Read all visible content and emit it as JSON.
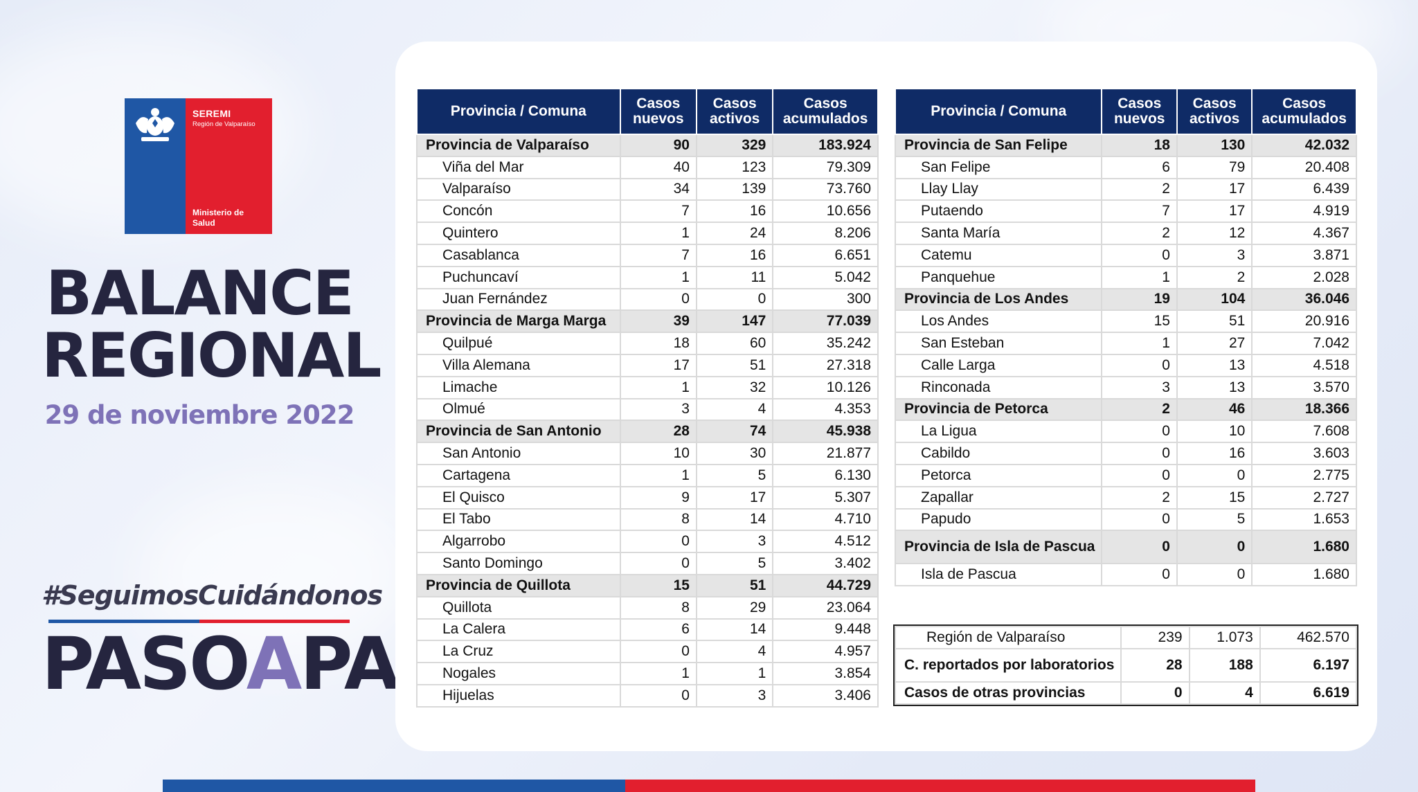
{
  "logo": {
    "line1": "SEREMI",
    "line2": "Región de Valparaíso",
    "line3a": "Ministerio de",
    "line3b": "Salud"
  },
  "title_line1": "BALANCE",
  "title_line2": "REGIONAL",
  "date": "29 de noviembre 2022",
  "hashtag": "#SeguimosCuidándonos",
  "paso": {
    "p1": "PASO",
    "p2": "A",
    "p3": "PASO"
  },
  "headers": {
    "col1": "Provincia / Comuna",
    "col2a": "Casos",
    "col2b": "nuevos",
    "col3a": "Casos",
    "col3b": "activos",
    "col4a": "Casos",
    "col4b": "acumulados"
  },
  "left_rows": [
    {
      "name": "Provincia de Valparaíso",
      "nuevos": "90",
      "activos": "329",
      "acum": "183.924",
      "prov": true
    },
    {
      "name": "Viña del Mar",
      "nuevos": "40",
      "activos": "123",
      "acum": "79.309"
    },
    {
      "name": "Valparaíso",
      "nuevos": "34",
      "activos": "139",
      "acum": "73.760"
    },
    {
      "name": "Concón",
      "nuevos": "7",
      "activos": "16",
      "acum": "10.656"
    },
    {
      "name": "Quintero",
      "nuevos": "1",
      "activos": "24",
      "acum": "8.206"
    },
    {
      "name": "Casablanca",
      "nuevos": "7",
      "activos": "16",
      "acum": "6.651"
    },
    {
      "name": "Puchuncaví",
      "nuevos": "1",
      "activos": "11",
      "acum": "5.042"
    },
    {
      "name": "Juan Fernández",
      "nuevos": "0",
      "activos": "0",
      "acum": "300"
    },
    {
      "name": "Provincia de Marga Marga",
      "nuevos": "39",
      "activos": "147",
      "acum": "77.039",
      "prov": true
    },
    {
      "name": "Quilpué",
      "nuevos": "18",
      "activos": "60",
      "acum": "35.242"
    },
    {
      "name": "Villa Alemana",
      "nuevos": "17",
      "activos": "51",
      "acum": "27.318"
    },
    {
      "name": "Limache",
      "nuevos": "1",
      "activos": "32",
      "acum": "10.126"
    },
    {
      "name": "Olmué",
      "nuevos": "3",
      "activos": "4",
      "acum": "4.353"
    },
    {
      "name": "Provincia de San Antonio",
      "nuevos": "28",
      "activos": "74",
      "acum": "45.938",
      "prov": true
    },
    {
      "name": "San Antonio",
      "nuevos": "10",
      "activos": "30",
      "acum": "21.877"
    },
    {
      "name": "Cartagena",
      "nuevos": "1",
      "activos": "5",
      "acum": "6.130"
    },
    {
      "name": "El Quisco",
      "nuevos": "9",
      "activos": "17",
      "acum": "5.307"
    },
    {
      "name": "El Tabo",
      "nuevos": "8",
      "activos": "14",
      "acum": "4.710"
    },
    {
      "name": "Algarrobo",
      "nuevos": "0",
      "activos": "3",
      "acum": "4.512"
    },
    {
      "name": "Santo Domingo",
      "nuevos": "0",
      "activos": "5",
      "acum": "3.402"
    },
    {
      "name": "Provincia de Quillota",
      "nuevos": "15",
      "activos": "51",
      "acum": "44.729",
      "prov": true
    },
    {
      "name": "Quillota",
      "nuevos": "8",
      "activos": "29",
      "acum": "23.064"
    },
    {
      "name": "La Calera",
      "nuevos": "6",
      "activos": "14",
      "acum": "9.448"
    },
    {
      "name": "La Cruz",
      "nuevos": "0",
      "activos": "4",
      "acum": "4.957"
    },
    {
      "name": "Nogales",
      "nuevos": "1",
      "activos": "1",
      "acum": "3.854"
    },
    {
      "name": "Hijuelas",
      "nuevos": "0",
      "activos": "3",
      "acum": "3.406"
    }
  ],
  "right_rows": [
    {
      "name": "Provincia de San Felipe",
      "nuevos": "18",
      "activos": "130",
      "acum": "42.032",
      "prov": true
    },
    {
      "name": "San Felipe",
      "nuevos": "6",
      "activos": "79",
      "acum": "20.408"
    },
    {
      "name": "Llay Llay",
      "nuevos": "2",
      "activos": "17",
      "acum": "6.439"
    },
    {
      "name": "Putaendo",
      "nuevos": "7",
      "activos": "17",
      "acum": "4.919"
    },
    {
      "name": "Santa María",
      "nuevos": "2",
      "activos": "12",
      "acum": "4.367"
    },
    {
      "name": "Catemu",
      "nuevos": "0",
      "activos": "3",
      "acum": "3.871"
    },
    {
      "name": "Panquehue",
      "nuevos": "1",
      "activos": "2",
      "acum": "2.028"
    },
    {
      "name": "Provincia de Los Andes",
      "nuevos": "19",
      "activos": "104",
      "acum": "36.046",
      "prov": true
    },
    {
      "name": "Los Andes",
      "nuevos": "15",
      "activos": "51",
      "acum": "20.916"
    },
    {
      "name": "San Esteban",
      "nuevos": "1",
      "activos": "27",
      "acum": "7.042"
    },
    {
      "name": "Calle Larga",
      "nuevos": "0",
      "activos": "13",
      "acum": "4.518"
    },
    {
      "name": "Rinconada",
      "nuevos": "3",
      "activos": "13",
      "acum": "3.570"
    },
    {
      "name": "Provincia de Petorca",
      "nuevos": "2",
      "activos": "46",
      "acum": "18.366",
      "prov": true
    },
    {
      "name": "La Ligua",
      "nuevos": "0",
      "activos": "10",
      "acum": "7.608"
    },
    {
      "name": "Cabildo",
      "nuevos": "0",
      "activos": "16",
      "acum": "3.603"
    },
    {
      "name": "Petorca",
      "nuevos": "0",
      "activos": "0",
      "acum": "2.775"
    },
    {
      "name": "Zapallar",
      "nuevos": "2",
      "activos": "15",
      "acum": "2.727"
    },
    {
      "name": "Papudo",
      "nuevos": "0",
      "activos": "5",
      "acum": "1.653"
    },
    {
      "name": "Provincia de Isla de Pascua",
      "nuevos": "0",
      "activos": "0",
      "acum": "1.680",
      "prov": true,
      "tall": true
    },
    {
      "name": "Isla de Pascua",
      "nuevos": "0",
      "activos": "0",
      "acum": "1.680"
    }
  ],
  "summary_rows": [
    {
      "name": "Región de Valparaíso",
      "nuevos": "239",
      "activos": "1.073",
      "acum": "462.570",
      "bold": false
    },
    {
      "name": "C. reportados por laboratorios",
      "nuevos": "28",
      "activos": "188",
      "acum": "6.197",
      "bold": true,
      "tall": true
    },
    {
      "name": "Casos de otras provincias",
      "nuevos": "0",
      "activos": "4",
      "acum": "6.619",
      "bold": true
    }
  ]
}
